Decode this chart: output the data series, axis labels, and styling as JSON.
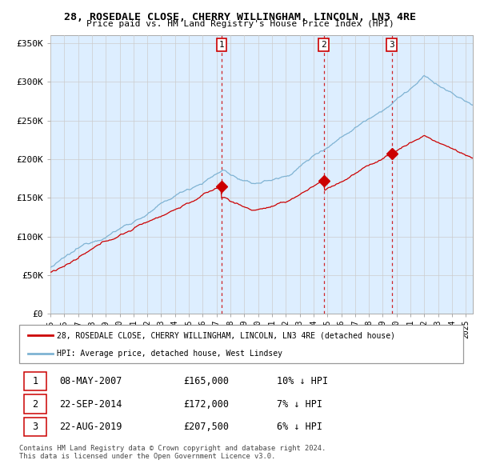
{
  "title": "28, ROSEDALE CLOSE, CHERRY WILLINGHAM, LINCOLN, LN3 4RE",
  "subtitle": "Price paid vs. HM Land Registry's House Price Index (HPI)",
  "ylabel_ticks": [
    "£0",
    "£50K",
    "£100K",
    "£150K",
    "£200K",
    "£250K",
    "£300K",
    "£350K"
  ],
  "ytick_values": [
    0,
    50000,
    100000,
    150000,
    200000,
    250000,
    300000,
    350000
  ],
  "ylim": [
    0,
    360000
  ],
  "xlim_start": 1995.0,
  "xlim_end": 2025.5,
  "sale_color": "#cc0000",
  "hpi_color": "#7fb3d3",
  "chart_bg": "#ddeeff",
  "sale_label": "28, ROSEDALE CLOSE, CHERRY WILLINGHAM, LINCOLN, LN3 4RE (detached house)",
  "hpi_label": "HPI: Average price, detached house, West Lindsey",
  "transactions": [
    {
      "date": 2007.36,
      "price": 165000,
      "label": "1"
    },
    {
      "date": 2014.73,
      "price": 172000,
      "label": "2"
    },
    {
      "date": 2019.64,
      "price": 207500,
      "label": "3"
    }
  ],
  "transaction_table": [
    {
      "label": "1",
      "date": "08-MAY-2007",
      "price": "£165,000",
      "note": "10% ↓ HPI"
    },
    {
      "label": "2",
      "date": "22-SEP-2014",
      "price": "£172,000",
      "note": "7% ↓ HPI"
    },
    {
      "label": "3",
      "date": "22-AUG-2019",
      "price": "£207,500",
      "note": "6% ↓ HPI"
    }
  ],
  "footer": "Contains HM Land Registry data © Crown copyright and database right 2024.\nThis data is licensed under the Open Government Licence v3.0.",
  "background_color": "#ffffff",
  "grid_color": "#cccccc"
}
